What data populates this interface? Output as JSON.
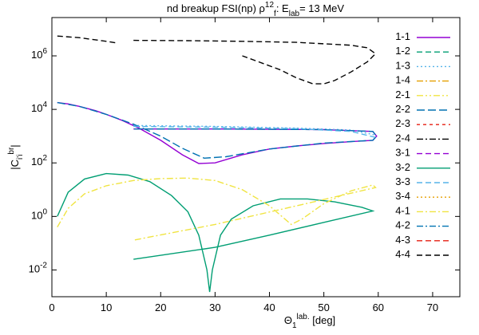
{
  "chart_data": {
    "type": "line",
    "title": "nd breakup FSI(np) ρ^{12}_{f}: E_{lab}=   13 MeV",
    "xlabel": "Θ_{1}^{lab.} [deg]",
    "ylabel": "|C_{i'i}^{br}|",
    "ylog": true,
    "xlim": [
      0,
      75
    ],
    "xticks": [
      0,
      10,
      20,
      30,
      40,
      50,
      60,
      70
    ],
    "ylim": [
      0.001,
      27000000
    ],
    "yticks": [
      {
        "value": 0.01,
        "label": "10^{-2}"
      },
      {
        "value": 1,
        "label": "10^{0}"
      },
      {
        "value": 100,
        "label": "10^{2}"
      },
      {
        "value": 10000,
        "label": "10^{4}"
      },
      {
        "value": 1000000,
        "label": "10^{6}"
      }
    ],
    "legend": "top-right",
    "series": [
      {
        "name": "1-1",
        "color": "#9400d3",
        "dash": "solid",
        "x": [
          1,
          3,
          5,
          8,
          10,
          13,
          16,
          20,
          24,
          27,
          30,
          35,
          40,
          45,
          50,
          55,
          59,
          59.7,
          59,
          50,
          40,
          30,
          20,
          15
        ],
        "values": [
          18000,
          16000,
          13000,
          9000,
          6500,
          3800,
          2000,
          700,
          200,
          95,
          100,
          200,
          330,
          430,
          530,
          620,
          700,
          1000,
          1500,
          1750,
          1800,
          1850,
          1850,
          1850
        ]
      },
      {
        "name": "1-2",
        "color": "#009e73",
        "dash": "dashed",
        "x": [],
        "values": []
      },
      {
        "name": "1-3",
        "color": "#56b4e9",
        "dash": "dotted",
        "x": [
          15,
          30,
          45,
          55,
          59.5
        ],
        "values": [
          2500,
          2300,
          2000,
          1700,
          1100
        ]
      },
      {
        "name": "1-4",
        "color": "#e69f00",
        "dash": "dashdot",
        "x": [],
        "values": []
      },
      {
        "name": "2-1",
        "color": "#f0e442",
        "dash": "dashdotdot",
        "x": [],
        "values": []
      },
      {
        "name": "2-2",
        "color": "#0072b2",
        "dash": "longdash",
        "x": [
          1,
          5,
          10,
          15,
          20,
          24,
          28,
          32,
          40,
          50,
          59,
          59.7,
          59,
          50,
          40,
          30,
          20,
          15
        ],
        "values": [
          18000,
          13000,
          6500,
          2800,
          1000,
          350,
          150,
          170,
          330,
          550,
          700,
          1000,
          1500,
          1750,
          1800,
          1850,
          1850,
          1850
        ]
      },
      {
        "name": "2-3",
        "color": "#e51e10",
        "dash": "shortdash",
        "x": [],
        "values": []
      },
      {
        "name": "2-4",
        "color": "#000000",
        "dash": "dashdot",
        "x": [],
        "values": []
      },
      {
        "name": "3-1",
        "color": "#9400d3",
        "dash": "dashed",
        "x": [],
        "values": []
      },
      {
        "name": "3-2",
        "color": "#009e73",
        "dash": "solid",
        "x": [
          1,
          3,
          6,
          10,
          14,
          18,
          22,
          25,
          27,
          28.5,
          29,
          29.5,
          31,
          33,
          37,
          42,
          47,
          52,
          57,
          59,
          50,
          40,
          30,
          15
        ],
        "values": [
          1,
          8,
          25,
          40,
          35,
          20,
          6,
          1.5,
          0.2,
          0.01,
          0.0015,
          0.01,
          0.2,
          0.8,
          2.5,
          4.5,
          4.5,
          3.5,
          2.2,
          1.6,
          0.6,
          0.2,
          0.07,
          0.025
        ]
      },
      {
        "name": "3-3",
        "color": "#56b4e9",
        "dash": "dashed",
        "x": [
          15,
          30,
          45,
          55,
          59.5
        ],
        "values": [
          2300,
          2150,
          1900,
          1500,
          900
        ]
      },
      {
        "name": "3-4",
        "color": "#e69f00",
        "dash": "dotted",
        "x": [],
        "values": []
      },
      {
        "name": "4-1",
        "color": "#f0e442",
        "dash": "dashdot",
        "x": [
          1,
          3,
          6,
          10,
          15,
          20,
          25,
          30,
          35,
          40,
          44,
          46,
          50,
          55,
          59,
          59.5,
          45,
          30,
          15
        ],
        "values": [
          0.4,
          2,
          7,
          14,
          22,
          26,
          27,
          22,
          10,
          2.5,
          0.5,
          0.8,
          3,
          9,
          15,
          12,
          2.5,
          0.5,
          0.13
        ]
      },
      {
        "name": "4-2",
        "color": "#0072b2",
        "dash": "dashdot",
        "x": [],
        "values": []
      },
      {
        "name": "4-3",
        "color": "#e51e10",
        "dash": "dashed",
        "x": [],
        "values": []
      },
      {
        "name": "4-4",
        "color": "#000000",
        "dash": "dashed",
        "x": [
          1,
          5,
          10,
          12,
          null,
          15,
          25,
          35,
          45,
          55,
          58,
          59.5,
          58,
          55,
          52,
          50,
          48,
          45,
          42,
          38,
          35
        ],
        "values": [
          5500000,
          4800000,
          3500000,
          3000000,
          null,
          3800000,
          3700000,
          3500000,
          3200000,
          2500000,
          2000000,
          1200000,
          600000,
          250000,
          120000,
          90000,
          90000,
          150000,
          300000,
          600000,
          1000000
        ]
      }
    ]
  }
}
